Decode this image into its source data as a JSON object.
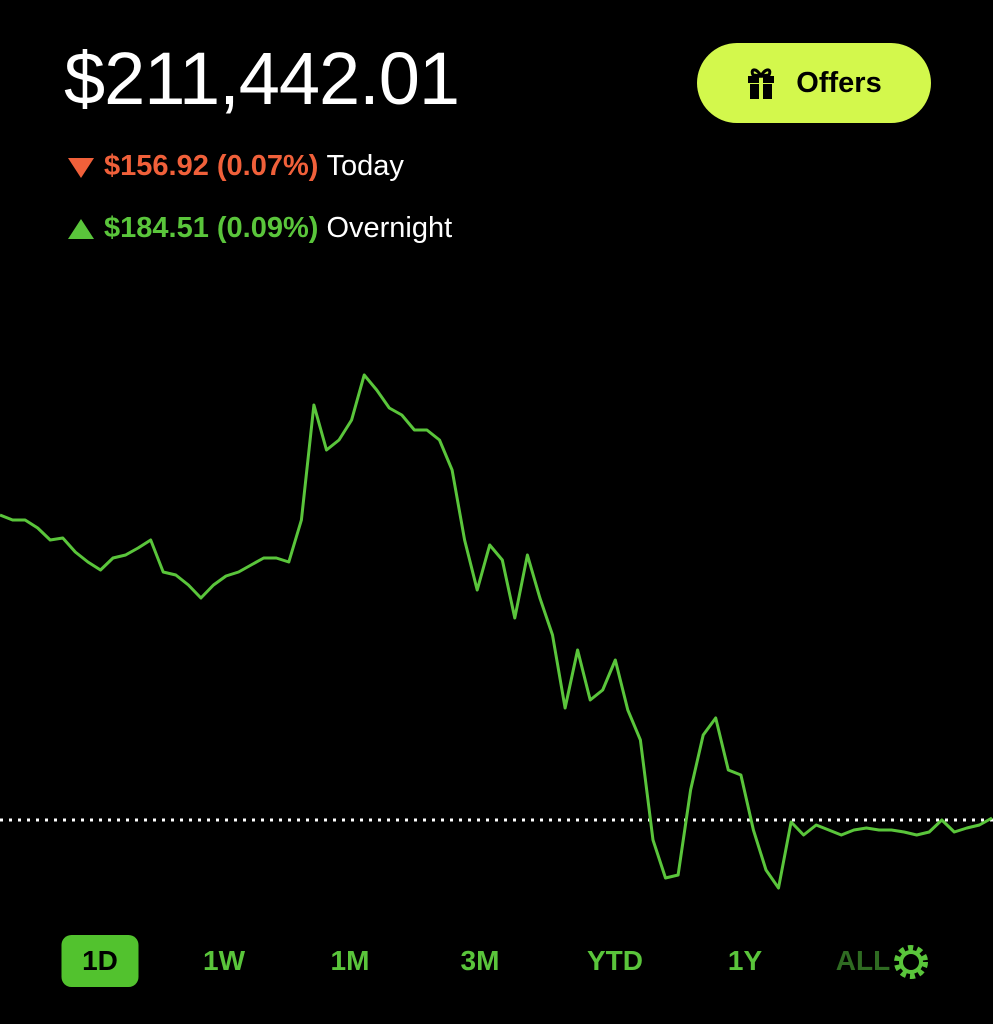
{
  "header": {
    "balance": "$211,442.01",
    "today_change": "$156.92 (0.07%)",
    "today_label": "Today",
    "overnight_change": "$184.51 (0.09%)",
    "overnight_label": "Overnight",
    "offers_button": "Offers"
  },
  "chart_data": {
    "type": "line",
    "color": "#5ac53b",
    "reference": 211420,
    "ylim": [
      211240,
      211940
    ],
    "values": [
      211725,
      211720,
      211720,
      211712,
      211700,
      211702,
      211688,
      211678,
      211670,
      211682,
      211685,
      211692,
      211700,
      211668,
      211665,
      211655,
      211642,
      211655,
      211664,
      211668,
      211675,
      211682,
      211682,
      211678,
      211720,
      211835,
      211790,
      211800,
      211820,
      211865,
      211850,
      211832,
      211825,
      211810,
      211810,
      211800,
      211770,
      211700,
      211650,
      211695,
      211680,
      211622,
      211685,
      211642,
      211605,
      211532,
      211590,
      211540,
      211550,
      211580,
      211530,
      211500,
      211400,
      211362,
      211365,
      211450,
      211505,
      211522,
      211470,
      211465,
      211410,
      211370,
      211352,
      211418,
      211405,
      211415,
      211410,
      211405,
      211410,
      211412,
      211410,
      211410,
      211408,
      211405,
      211408,
      211420,
      211408,
      211412,
      211415,
      211422
    ]
  },
  "timeframes": [
    "1D",
    "1W",
    "1M",
    "3M",
    "YTD",
    "1Y",
    "ALL"
  ]
}
